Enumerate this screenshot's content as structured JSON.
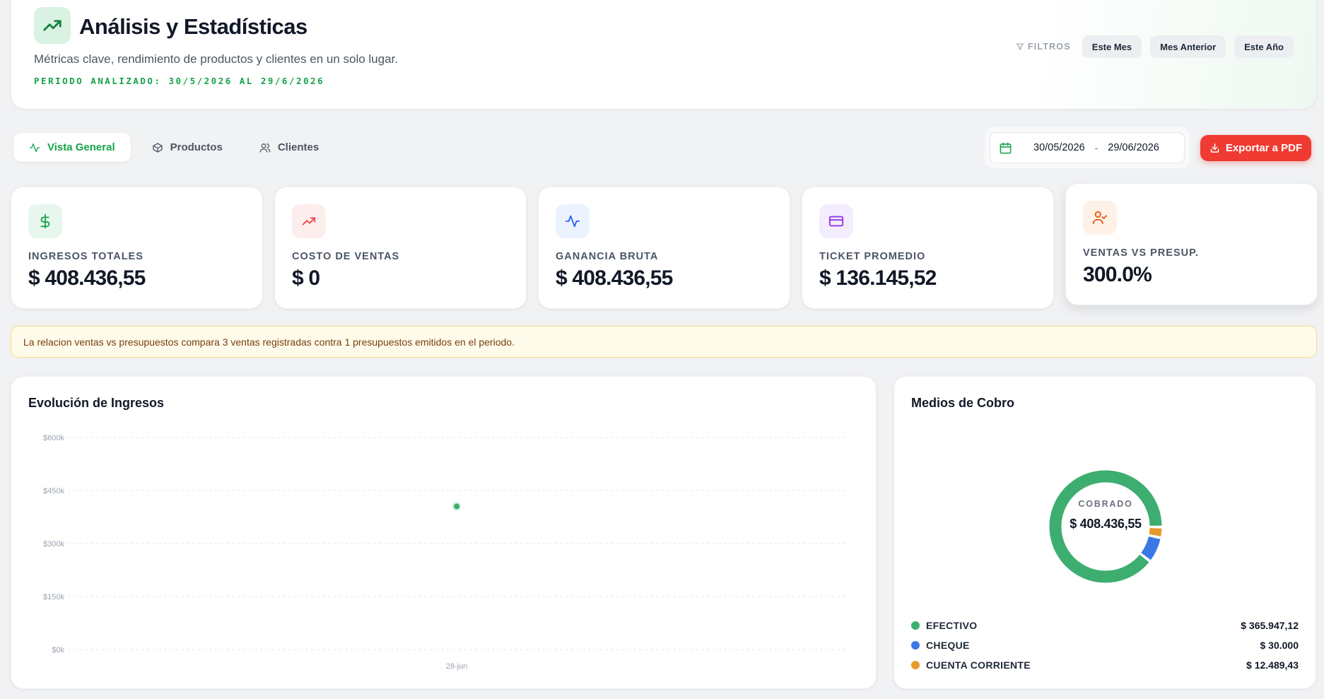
{
  "header": {
    "title": "Análisis y Estadísticas",
    "subtitle": "Métricas clave, rendimiento de productos y clientes en un solo lugar.",
    "period": "PERIODO ANALIZADO: 30/5/2026 AL 29/6/2026",
    "filters_label": "FILTROS",
    "filters": [
      "Este Mes",
      "Mes Anterior",
      "Este Año"
    ]
  },
  "tabs": [
    {
      "label": "Vista General",
      "icon": "activity-icon",
      "active": true
    },
    {
      "label": "Productos",
      "icon": "box-icon",
      "active": false
    },
    {
      "label": "Clientes",
      "icon": "users-icon",
      "active": false
    }
  ],
  "date_range": {
    "from": "30/05/2026",
    "separator": "-",
    "to": "29/06/2026"
  },
  "export": {
    "label": "Exportar a PDF"
  },
  "kpis": [
    {
      "label": "INGRESOS TOTALES",
      "value": "$ 408.436,55",
      "icon": "dollar-icon",
      "color": "#16a34a",
      "bg": "#e8f7ee"
    },
    {
      "label": "COSTO DE VENTAS",
      "value": "$ 0",
      "icon": "trending-up-icon",
      "color": "#ef4444",
      "bg": "#fdeeee"
    },
    {
      "label": "GANANCIA BRUTA",
      "value": "$ 408.436,55",
      "icon": "activity-icon",
      "color": "#2563eb",
      "bg": "#ecf2fe"
    },
    {
      "label": "TICKET PROMEDIO",
      "value": "$ 136.145,52",
      "icon": "credit-card-icon",
      "color": "#9333ea",
      "bg": "#f4edfd"
    },
    {
      "label": "VENTAS VS PRESUP.",
      "value": "300.0%",
      "icon": "user-check-icon",
      "color": "#ea580c",
      "bg": "#fef1e7"
    }
  ],
  "banner": {
    "text": "La relacion ventas vs presupuestos compara 3 ventas registradas contra 1 presupuestos emitidos en el periodo."
  },
  "revenue_panel": {
    "title": "Evolución de Ingresos"
  },
  "payments_panel": {
    "title": "Medios de Cobro",
    "center_label": "COBRADO",
    "center_value": "$ 408.436,55",
    "methods": [
      {
        "name": "EFECTIVO",
        "amount": "$ 365.947,12",
        "value": 365947.12,
        "color": "#3dae6f"
      },
      {
        "name": "CHEQUE",
        "amount": "$ 30.000",
        "value": 30000,
        "color": "#3b78e7"
      },
      {
        "name": "CUENTA CORRIENTE",
        "amount": "$ 12.489,43",
        "value": 12489.43,
        "color": "#e79a2a"
      }
    ]
  },
  "chart_data": [
    {
      "type": "scatter",
      "title": "Evolución de Ingresos",
      "x": [
        "28-jun"
      ],
      "y": [
        405000
      ],
      "yticks": [
        "$0k",
        "$150k",
        "$300k",
        "$450k",
        "$600k"
      ],
      "ylim": [
        0,
        600000
      ],
      "grid": true,
      "color": "#3dae6f"
    },
    {
      "type": "pie",
      "title": "Medios de Cobro",
      "categories": [
        "EFECTIVO",
        "CHEQUE",
        "CUENTA CORRIENTE"
      ],
      "values": [
        365947.12,
        30000,
        12489.43
      ],
      "colors": [
        "#3dae6f",
        "#3b78e7",
        "#e79a2a"
      ]
    }
  ]
}
